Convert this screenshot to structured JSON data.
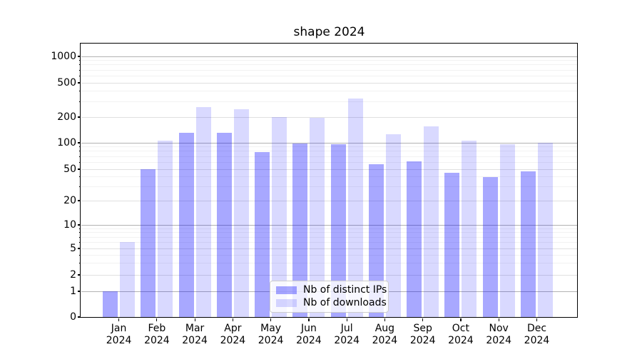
{
  "title": "shape 2024",
  "colors": {
    "bar_distinct_ips": "rgba(0,0,255,0.34)",
    "bar_downloads": "rgba(0,0,255,0.15)",
    "grid_major": "#b2b2b2",
    "grid_mid": "#e0e0e0",
    "grid_minor": "#f2f2f2",
    "axis": "#000000",
    "text": "#000000"
  },
  "legend": {
    "items": [
      {
        "label": "Nb of distinct IPs"
      },
      {
        "label": "Nb of downloads"
      }
    ]
  },
  "chart_data": {
    "type": "bar",
    "title": "shape 2024",
    "categories": [
      "Jan 2024",
      "Feb 2024",
      "Mar 2024",
      "Apr 2024",
      "May 2024",
      "Jun 2024",
      "Jul 2024",
      "Aug 2024",
      "Sep 2024",
      "Oct 2024",
      "Nov 2024",
      "Dec 2024"
    ],
    "x_tick_months": [
      "Jan",
      "Feb",
      "Mar",
      "Apr",
      "May",
      "Jun",
      "Jul",
      "Aug",
      "Sep",
      "Oct",
      "Nov",
      "Dec"
    ],
    "x_tick_year": "2024",
    "series": [
      {
        "name": "Nb of distinct IPs",
        "values": [
          1,
          50,
          130,
          130,
          79,
          98,
          97,
          57,
          62,
          45,
          40,
          47
        ]
      },
      {
        "name": "Nb of downloads",
        "values": [
          6,
          106,
          262,
          249,
          201,
          196,
          331,
          127,
          157,
          107,
          96,
          100
        ]
      }
    ],
    "xlabel": "",
    "ylabel": "",
    "yscale": "symlog",
    "yticks": [
      0,
      1,
      2,
      5,
      10,
      20,
      50,
      100,
      200,
      500,
      1000
    ],
    "ylim": [
      0,
      1400
    ],
    "grid": true,
    "legend_position": "lower center"
  }
}
